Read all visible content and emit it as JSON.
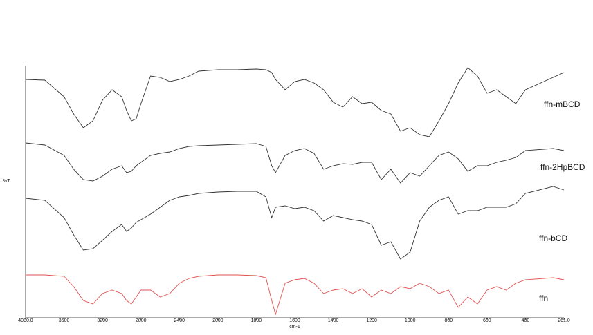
{
  "chart_data": {
    "type": "line",
    "xlabel": "cm-1",
    "ylabel": "%T",
    "x": [
      4000,
      3800,
      3600,
      3500,
      3400,
      3300,
      3200,
      3100,
      3000,
      2950,
      2900,
      2850,
      2800,
      2700,
      2600,
      2500,
      2400,
      2300,
      2200,
      2000,
      1900,
      1800,
      1750,
      1720,
      1700,
      1650,
      1600,
      1550,
      1500,
      1450,
      1400,
      1350,
      1300,
      1250,
      1200,
      1150,
      1100,
      1050,
      1000,
      950,
      900,
      850,
      800,
      750,
      700,
      650,
      600,
      550,
      500,
      450,
      400,
      300,
      261
    ],
    "xlim": [
      4000,
      261
    ],
    "xticks": [
      {
        "value": 4000,
        "label": "4000.0"
      },
      3600,
      3200,
      2800,
      2400,
      2000,
      1800,
      1600,
      1400,
      1200,
      1000,
      800,
      600,
      400,
      {
        "value": 261,
        "label": "261.0"
      }
    ],
    "ylim": [
      0,
      370
    ],
    "series": [
      {
        "name": "ffn-mBCD",
        "color": "#333333",
        "values": [
          350,
          349,
          325,
          300,
          280,
          290,
          320,
          335,
          325,
          305,
          290,
          293,
          315,
          355,
          353,
          347,
          350,
          355,
          362,
          364,
          364,
          365,
          364,
          360,
          350,
          335,
          347,
          350,
          345,
          335,
          317,
          310,
          325,
          315,
          317,
          305,
          300,
          275,
          280,
          270,
          267,
          290,
          315,
          345,
          367,
          355,
          330,
          335,
          325,
          315,
          335,
          353,
          360
        ]
      },
      {
        "name": "ffn-2HpBCD",
        "color": "#333333",
        "values": [
          258,
          255,
          240,
          220,
          205,
          203,
          210,
          220,
          225,
          215,
          217,
          225,
          230,
          240,
          243,
          245,
          250,
          253,
          254,
          255,
          256,
          257,
          253,
          225,
          215,
          240,
          247,
          250,
          243,
          220,
          225,
          228,
          227,
          230,
          230,
          205,
          220,
          200,
          215,
          210,
          225,
          240,
          245,
          235,
          217,
          225,
          225,
          230,
          233,
          237,
          247,
          250,
          247
        ]
      },
      {
        "name": "ffn-bCD",
        "color": "#333333",
        "values": [
          178,
          175,
          150,
          125,
          103,
          105,
          117,
          130,
          140,
          130,
          135,
          143,
          147,
          155,
          165,
          175,
          180,
          182,
          185,
          187,
          188,
          188,
          180,
          150,
          165,
          167,
          163,
          165,
          160,
          145,
          153,
          150,
          147,
          145,
          140,
          110,
          115,
          90,
          100,
          145,
          165,
          175,
          180,
          155,
          160,
          160,
          165,
          165,
          165,
          170,
          185,
          195,
          190
        ]
      },
      {
        "name": "ffn",
        "color": "#e05050",
        "values": [
          67,
          67,
          65,
          50,
          30,
          25,
          40,
          45,
          40,
          30,
          25,
          35,
          45,
          45,
          35,
          40,
          55,
          62,
          65,
          67,
          67,
          66,
          63,
          30,
          10,
          55,
          60,
          62,
          55,
          40,
          45,
          47,
          40,
          47,
          35,
          45,
          40,
          50,
          47,
          55,
          50,
          40,
          45,
          20,
          35,
          25,
          45,
          50,
          45,
          55,
          60,
          63,
          60
        ]
      }
    ]
  }
}
